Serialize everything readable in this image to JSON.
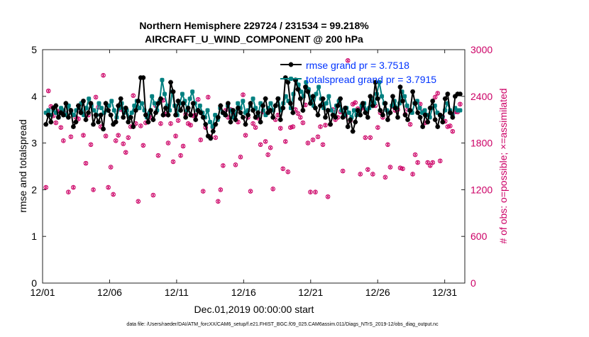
{
  "chart_data": {
    "type": "line",
    "title_line1": "Northern Hemisphere 229724 / 231534 = 99.218%",
    "title_line2": "AIRCRAFT_U_WIND_COMPONENT @ 200 hPa",
    "xlabel": "Dec.01,2019 00:00:00 start",
    "ylabel_left": "rmse and totalspread",
    "ylabel_right": "# of obs: o=possible; ×=assimilated",
    "footer": "data file: /Users/raeder/DAI/ATM_forcXX/CAM6_setup/f.e21.FHIST_BGC.f09_025.CAM6assim.011/Diags_NTrS_2019-12/obs_diag_output.nc",
    "xlim": [
      0,
      31.5
    ],
    "ylim_left": [
      0,
      5
    ],
    "ylim_right": [
      0,
      3000
    ],
    "x_ticks": [
      0,
      5,
      10,
      15,
      20,
      25,
      30
    ],
    "x_tick_labels": [
      "12/01",
      "12/06",
      "12/11",
      "12/16",
      "12/21",
      "12/26",
      "12/31"
    ],
    "y_left_ticks": [
      "0",
      "1",
      "2",
      "3",
      "4",
      "5"
    ],
    "y_right_ticks": [
      "0",
      "600",
      "1200",
      "1800",
      "2400",
      "3000"
    ],
    "colors": {
      "rmse": "#000000",
      "spread": "#008080",
      "obs": "#cc0066",
      "legend_text": "#0033ff"
    },
    "series": [
      {
        "name": "rmse grand pr = 3.7518",
        "values": [
          3.4,
          3.6,
          3.45,
          3.75,
          3.8,
          3.55,
          3.65,
          3.6,
          3.85,
          3.55,
          3.7,
          3.35,
          3.45,
          3.8,
          3.65,
          3.9,
          3.5,
          3.65,
          3.85,
          3.4,
          3.6,
          3.45,
          3.6,
          3.3,
          3.85,
          3.7,
          3.6,
          3.4,
          3.45,
          3.8,
          3.95,
          3.55,
          3.75,
          3.45,
          3.55,
          3.35,
          3.7,
          3.9,
          4.4,
          4.4,
          3.6,
          3.45,
          3.7,
          3.5,
          3.65,
          3.85,
          3.95,
          3.6,
          3.75,
          3.6,
          4.3,
          4.1,
          3.6,
          3.9,
          3.7,
          3.85,
          3.55,
          3.75,
          3.6,
          3.85,
          3.5,
          3.7,
          3.65,
          3.55,
          3.4,
          3.15,
          3.1,
          3.25,
          3.4,
          3.55,
          3.8,
          3.65,
          3.6,
          3.85,
          3.45,
          3.7,
          3.5,
          3.75,
          3.65,
          3.55,
          3.4,
          3.6,
          3.85,
          3.7,
          3.55,
          3.65,
          3.45,
          3.8,
          3.95,
          3.65,
          3.7,
          3.55,
          3.8,
          3.95,
          3.5,
          3.75,
          4.4,
          4.3,
          3.85,
          3.65,
          4.35,
          4.15,
          3.95,
          3.7,
          4.2,
          4.1,
          3.85,
          4.0,
          3.75,
          3.6,
          3.8,
          3.95,
          3.55,
          3.7,
          3.4,
          3.6,
          3.55,
          3.8,
          3.95,
          3.55,
          3.75,
          3.35,
          3.5,
          3.25,
          3.45,
          3.7,
          3.6,
          3.85,
          3.65,
          3.55,
          4.0,
          3.8,
          4.3,
          3.95,
          3.7,
          3.6,
          3.85,
          3.5,
          3.65,
          4.0,
          3.75,
          3.55,
          4.2,
          3.9,
          3.6,
          3.5,
          3.7,
          4.1,
          3.85,
          3.65,
          3.55,
          3.35,
          3.6,
          3.45,
          3.75,
          3.9,
          3.5,
          3.35,
          3.6,
          3.45,
          3.95,
          4.05,
          3.65,
          3.55,
          4.0,
          4.05,
          4.05
        ]
      },
      {
        "name": "totalspread grand pr = 3.7915",
        "values": [
          3.65,
          3.7,
          3.6,
          3.7,
          3.65,
          3.55,
          3.75,
          3.7,
          3.6,
          3.8,
          3.65,
          3.6,
          3.7,
          3.75,
          3.85,
          3.6,
          3.75,
          3.95,
          3.8,
          3.7,
          3.6,
          3.85,
          3.75,
          3.65,
          3.7,
          3.8,
          3.9,
          3.7,
          3.55,
          3.75,
          3.85,
          3.65,
          3.7,
          3.55,
          3.65,
          3.8,
          3.9,
          3.75,
          3.85,
          3.7,
          3.55,
          3.65,
          4.0,
          3.85,
          3.7,
          3.9,
          4.35,
          4.05,
          3.8,
          3.7,
          4.1,
          3.8,
          3.6,
          3.85,
          4.05,
          3.9,
          3.7,
          3.95,
          4.1,
          3.85,
          3.7,
          3.8,
          3.65,
          3.55,
          3.7,
          3.45,
          3.35,
          3.6,
          3.5,
          3.75,
          3.65,
          3.6,
          3.8,
          3.7,
          3.55,
          3.6,
          3.85,
          3.75,
          3.9,
          3.65,
          3.7,
          3.8,
          3.95,
          3.75,
          3.6,
          3.85,
          3.7,
          3.6,
          3.75,
          3.85,
          3.7,
          3.8,
          3.95,
          3.7,
          3.85,
          4.0,
          3.9,
          3.75,
          4.05,
          4.35,
          4.25,
          4.1,
          4.0,
          4.3,
          4.15,
          3.9,
          3.8,
          4.05,
          4.2,
          3.95,
          3.75,
          3.85,
          4.0,
          3.7,
          3.6,
          3.8,
          3.9,
          3.7,
          3.6,
          3.75,
          3.65,
          3.55,
          3.7,
          3.6,
          3.65,
          3.8,
          3.85,
          3.7,
          3.75,
          3.95,
          3.85,
          4.05,
          4.3,
          4.0,
          3.85,
          3.7,
          3.65,
          3.8,
          3.9,
          3.75,
          3.85,
          4.1,
          4.0,
          3.8,
          3.7,
          3.65,
          3.85,
          3.9,
          3.75,
          3.65,
          3.7,
          3.6,
          3.55,
          3.75,
          3.8,
          3.65,
          3.6,
          3.55,
          3.7,
          3.85,
          3.7,
          3.6,
          3.75,
          3.7,
          3.7
        ]
      },
      {
        "name": "obs",
        "values": [
          1230,
          2470,
          2270,
          2150,
          2060,
          2210,
          2000,
          1830,
          2180,
          1170,
          1880,
          1230,
          2130,
          2110,
          2200,
          1900,
          1540,
          2160,
          1780,
          1200,
          2390,
          2260,
          2010,
          2670,
          1890,
          1230,
          1490,
          1140,
          1830,
          1900,
          2230,
          1790,
          1680,
          1870,
          2010,
          2410,
          2050,
          1050,
          2020,
          1770,
          2060,
          2170,
          2130,
          1130,
          2280,
          1640,
          2050,
          2350,
          2170,
          1800,
          2050,
          1560,
          1890,
          2090,
          1640,
          1760,
          2170,
          2050,
          2030,
          2150,
          2160,
          2360,
          1840,
          1180,
          2000,
          2390,
          1880,
          2000,
          1870,
          1050,
          1200,
          1510,
          2220,
          2130,
          2230,
          2180,
          1520,
          2070,
          1620,
          2420,
          1900,
          2130,
          1180,
          2050,
          2000,
          2120,
          1780,
          2200,
          1820,
          1650,
          1740,
          1210,
          2100,
          2160,
          1990,
          1470,
          1820,
          1430,
          2000,
          2010,
          2230,
          2180,
          2130,
          2060,
          2290,
          1800,
          1170,
          1840,
          1170,
          1880,
          2010,
          1780,
          2030,
          1110,
          2040,
          2230,
          2100,
          2130,
          2200,
          1440,
          2150,
          2860,
          2090,
          2300,
          2320,
          2240,
          1400,
          2250,
          1870,
          1460,
          1870,
          1400,
          2280,
          2000,
          2190,
          2130,
          1360,
          1780,
          1490,
          2270,
          2220,
          2230,
          1480,
          1470,
          2170,
          2230,
          2040,
          1400,
          1650,
          1550,
          2300,
          2200,
          2060,
          1550,
          1510,
          1550,
          2390,
          2440,
          1570,
          2140,
          2080,
          2010,
          2020,
          1950,
          2200,
          2200,
          2300
        ]
      }
    ]
  }
}
